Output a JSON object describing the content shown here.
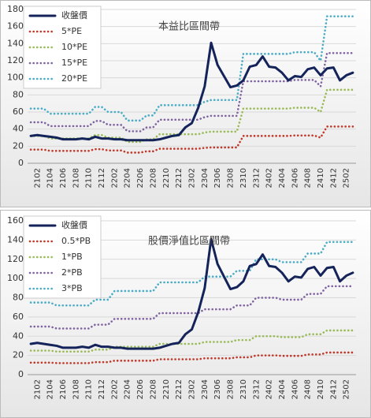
{
  "chart_data": [
    {
      "type": "line",
      "annotation": "本益比區間帶",
      "categories": [
        null,
        "2102",
        null,
        "2104",
        null,
        "2106",
        null,
        "2108",
        null,
        "2110",
        null,
        "2112",
        null,
        "2202",
        null,
        "2204",
        null,
        "2206",
        null,
        "2208",
        null,
        "2210",
        null,
        "2212",
        null,
        "2302",
        null,
        "2304",
        null,
        "2306",
        null,
        "2308",
        null,
        "2310",
        null,
        "2312",
        null,
        "2402",
        null,
        "2404",
        null,
        "2406",
        null,
        "2408",
        null,
        "2410",
        null,
        "2412",
        null,
        "2502",
        null
      ],
      "ylim": [
        0,
        180
      ],
      "yticks": [
        0,
        20,
        40,
        60,
        80,
        100,
        120,
        140,
        160,
        180
      ],
      "grid": true,
      "legend": "upper left",
      "series": [
        {
          "name": "收盤價",
          "color": "#14235a",
          "line_style": "solid",
          "values": [
            32,
            33,
            32,
            31,
            30,
            28,
            28,
            28,
            29,
            28,
            31,
            29,
            29,
            28,
            28,
            27,
            27,
            27,
            27,
            27,
            28,
            30,
            32,
            33,
            42,
            47,
            65,
            90,
            141,
            115,
            102,
            89,
            91,
            97,
            113,
            115,
            125,
            113,
            112,
            106,
            97,
            102,
            101,
            110,
            112,
            103,
            111,
            112,
            97,
            103,
            106
          ]
        },
        {
          "name": "5*PE",
          "color": "#c0392b",
          "line_style": "dotted",
          "values": [
            16,
            16,
            16,
            14.5,
            14.5,
            14.5,
            14.5,
            14.5,
            14.5,
            14.5,
            16.5,
            16.5,
            15,
            15,
            15,
            12.5,
            12.5,
            12.5,
            14,
            14,
            17,
            17,
            17,
            17,
            17,
            17,
            17,
            18,
            18.5,
            18.5,
            18.5,
            18.5,
            18.5,
            32,
            32,
            32,
            32,
            32,
            32,
            32,
            32,
            32.5,
            32.5,
            32.5,
            32.5,
            30,
            43,
            43,
            43,
            43,
            43
          ]
        },
        {
          "name": "10*PE",
          "color": "#9bbb59",
          "line_style": "dotted",
          "values": [
            32,
            32,
            32,
            29,
            29,
            29,
            29,
            29,
            29,
            29,
            33,
            33,
            30,
            30,
            30,
            25,
            25,
            25,
            28,
            28,
            34,
            34,
            34,
            34,
            34,
            34,
            34,
            36,
            37,
            37,
            37,
            37,
            37,
            64,
            64,
            64,
            64,
            64,
            64,
            64,
            64,
            65,
            65,
            65,
            65,
            60,
            86,
            86,
            86,
            86,
            86
          ]
        },
        {
          "name": "15*PE",
          "color": "#8064a2",
          "line_style": "dotted",
          "values": [
            48,
            48,
            48,
            43.5,
            43.5,
            43.5,
            43.5,
            43.5,
            43.5,
            43.5,
            49.5,
            49.5,
            45,
            45,
            45,
            37.5,
            37.5,
            37.5,
            42,
            42,
            51,
            51,
            51,
            51,
            51,
            51,
            51,
            54,
            55.5,
            55.5,
            55.5,
            55.5,
            55.5,
            96,
            96,
            96,
            96,
            96,
            96,
            96,
            96,
            97.5,
            97.5,
            97.5,
            97.5,
            90,
            129,
            129,
            129,
            129,
            129
          ]
        },
        {
          "name": "20*PE",
          "color": "#4bacc6",
          "line_style": "dotted",
          "values": [
            64,
            64,
            64,
            58,
            58,
            58,
            58,
            58,
            58,
            58,
            66,
            66,
            60,
            60,
            60,
            50,
            50,
            50,
            56,
            56,
            68,
            68,
            68,
            68,
            68,
            68,
            68,
            72,
            74,
            74,
            74,
            74,
            74,
            128,
            128,
            128,
            128,
            128,
            128,
            128,
            128,
            130,
            130,
            130,
            130,
            120,
            172,
            172,
            172,
            172,
            172
          ]
        }
      ]
    },
    {
      "type": "line",
      "annotation": "股價淨值比區間帶",
      "categories": [
        null,
        "2102",
        null,
        "2104",
        null,
        "2106",
        null,
        "2108",
        null,
        "2110",
        null,
        "2112",
        null,
        "2202",
        null,
        "2204",
        null,
        "2206",
        null,
        "2208",
        null,
        "2210",
        null,
        "2212",
        null,
        "2302",
        null,
        "2304",
        null,
        "2306",
        null,
        "2308",
        null,
        "2310",
        null,
        "2312",
        null,
        "2402",
        null,
        "2404",
        null,
        "2406",
        null,
        "2408",
        null,
        "2410",
        null,
        "2412",
        null,
        "2502",
        null
      ],
      "ylim": [
        0,
        160
      ],
      "yticks": [
        0,
        20,
        40,
        60,
        80,
        100,
        120,
        140,
        160
      ],
      "grid": true,
      "legend": "upper left",
      "series": [
        {
          "name": "收盤價",
          "color": "#14235a",
          "line_style": "solid",
          "values": [
            32,
            33,
            32,
            31,
            30,
            28,
            28,
            28,
            29,
            28,
            31,
            29,
            29,
            28,
            28,
            27,
            27,
            27,
            27,
            27,
            28,
            30,
            32,
            33,
            42,
            47,
            65,
            90,
            141,
            115,
            102,
            89,
            91,
            97,
            113,
            115,
            125,
            113,
            112,
            106,
            97,
            102,
            101,
            110,
            112,
            103,
            111,
            112,
            97,
            103,
            106
          ]
        },
        {
          "name": "0.5*PB",
          "color": "#c0392b",
          "line_style": "dotted",
          "values": [
            12.5,
            12.5,
            12.5,
            12.5,
            12,
            12,
            12,
            12,
            12,
            12,
            13,
            13,
            13,
            14.5,
            14.5,
            14.5,
            14.5,
            14.5,
            14.5,
            14.5,
            16,
            16,
            16,
            16,
            16,
            16,
            16,
            17,
            17,
            17,
            17,
            17,
            18,
            18,
            18,
            20,
            20,
            20,
            20,
            19.5,
            19.5,
            19.5,
            19.5,
            21,
            21,
            21,
            23,
            23,
            23,
            23,
            23
          ]
        },
        {
          "name": "1*PB",
          "color": "#9bbb59",
          "line_style": "dotted",
          "values": [
            25,
            25,
            25,
            25,
            24,
            24,
            24,
            24,
            24,
            24,
            26,
            26,
            26,
            29,
            29,
            29,
            29,
            29,
            29,
            29,
            32,
            32,
            32,
            32,
            32,
            32,
            32,
            34,
            34,
            34,
            34,
            34,
            36,
            36,
            36,
            40,
            40,
            40,
            40,
            39,
            39,
            39,
            39,
            42,
            42,
            42,
            46,
            46,
            46,
            46,
            46
          ]
        },
        {
          "name": "2*PB",
          "color": "#8064a2",
          "line_style": "dotted",
          "values": [
            50,
            50,
            50,
            50,
            48,
            48,
            48,
            48,
            48,
            48,
            52,
            52,
            52,
            58,
            58,
            58,
            58,
            58,
            58,
            58,
            64,
            64,
            64,
            64,
            64,
            64,
            64,
            68,
            68,
            68,
            68,
            68,
            72,
            72,
            72,
            80,
            80,
            80,
            80,
            78,
            78,
            78,
            78,
            84,
            84,
            84,
            92,
            92,
            92,
            92,
            92
          ]
        },
        {
          "name": "3*PB",
          "color": "#4bacc6",
          "line_style": "dotted",
          "values": [
            75,
            75,
            75,
            75,
            72,
            72,
            72,
            72,
            72,
            72,
            78,
            78,
            78,
            87,
            87,
            87,
            87,
            87,
            87,
            87,
            96,
            96,
            96,
            96,
            96,
            96,
            96,
            102,
            102,
            102,
            102,
            102,
            108,
            108,
            108,
            120,
            120,
            120,
            120,
            117,
            117,
            117,
            117,
            126,
            126,
            126,
            138,
            138,
            138,
            138,
            138
          ]
        }
      ]
    }
  ]
}
